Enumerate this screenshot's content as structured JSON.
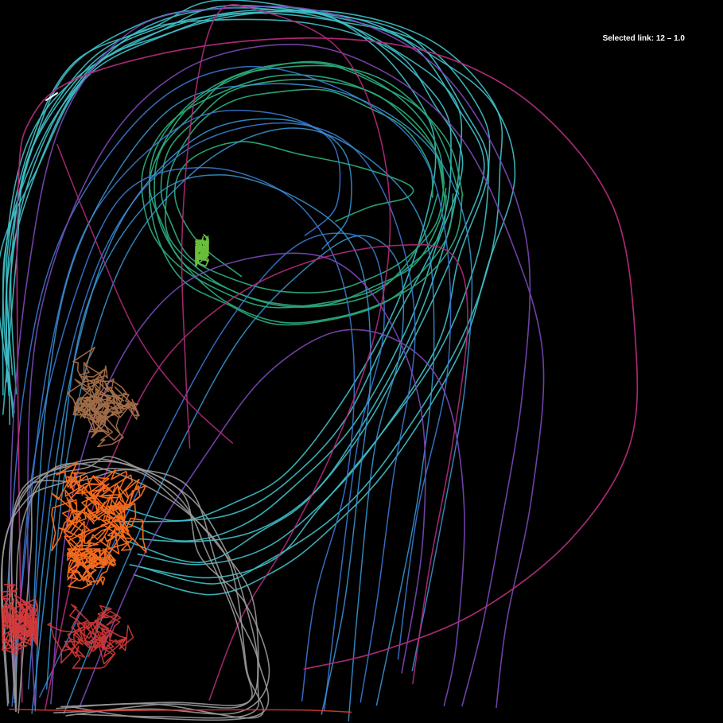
{
  "selection": {
    "prefix": "Selected link:",
    "value": "12 – 1.0"
  },
  "colors": {
    "background": "#000000",
    "teal": "#3fc1c9",
    "green": "#2aa87a",
    "lime": "#6abf3a",
    "blue": "#3a78d0",
    "sky": "#3a9ad8",
    "purple": "#7a48b8",
    "magenta": "#b02a7a",
    "brown": "#a8704a",
    "orange": "#f06a1e",
    "gray": "#9a9a9a",
    "red": "#d83a3a",
    "white": "#ffffff"
  }
}
